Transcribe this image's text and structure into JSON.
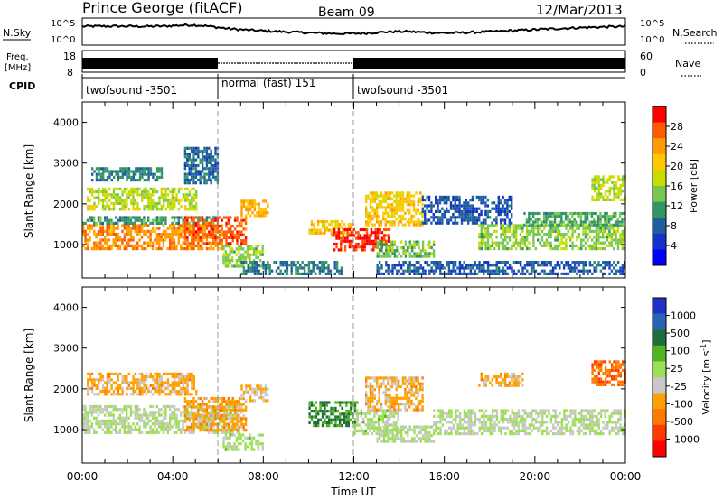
{
  "header": {
    "station": "Prince George (fitACF)",
    "beam": "Beam 09",
    "date": "12/Mar/2013"
  },
  "noise_panel": {
    "left_label": "N.Sky",
    "left_ticks": [
      "10^5",
      "10^0"
    ],
    "right_label": "N.Search",
    "right_ticks": [
      "10^5",
      "10^0"
    ]
  },
  "freq_panel": {
    "left_label_line1": "Freq.",
    "left_label_line2": "[MHz]",
    "left_ticks": [
      "18",
      "8"
    ],
    "right_label": "Nave",
    "right_ticks": [
      "60",
      "0"
    ]
  },
  "cpid_panel": {
    "label": "CPID",
    "segments": [
      {
        "label": "twofsound -3501",
        "start_hour": 0,
        "end_hour": 6
      },
      {
        "label": "normal (fast) 151",
        "start_hour": 6,
        "end_hour": 12
      },
      {
        "label": "twofsound -3501",
        "start_hour": 12,
        "end_hour": 24
      }
    ]
  },
  "power_colorbar": {
    "label": "Power [dB]",
    "ticks": [
      "28",
      "24",
      "20",
      "16",
      "12",
      "8",
      "4"
    ],
    "colors": [
      "#ff0000",
      "#ff5a00",
      "#ff9a00",
      "#ffc800",
      "#c8dc00",
      "#78c850",
      "#329664",
      "#1e5fa0",
      "#1432c8",
      "#0000ff"
    ]
  },
  "velocity_colorbar": {
    "label": "Velocity [m s",
    "label_sup": "-1",
    "label_end": "]",
    "ticks": [
      "1000",
      "500",
      "100",
      "25",
      "-25",
      "-100",
      "-500",
      "-1000"
    ],
    "colors": [
      "#1e32c8",
      "#2864b4",
      "#1e6e3c",
      "#50b41e",
      "#9be050",
      "#c8c8c8",
      "#ffa000",
      "#ff7800",
      "#ff3c00",
      "#ff0000"
    ]
  },
  "x_axis": {
    "label": "Time UT",
    "ticks": [
      "00:00",
      "04:00",
      "08:00",
      "12:00",
      "16:00",
      "20:00",
      "00:00"
    ]
  },
  "chart_data": [
    {
      "type": "heatmap",
      "title": "Power",
      "ylabel": "Slant Range [km]",
      "xlabel": "Time UT",
      "xlim": [
        0,
        24
      ],
      "ylim": [
        180,
        4500
      ],
      "y_ticks": [
        1000,
        2000,
        3000,
        4000
      ],
      "colorbar_label": "Power [dB]",
      "colorbar_range": [
        0,
        30
      ],
      "regions": [
        {
          "t0": 0,
          "t1": 6.2,
          "r0": 900,
          "r1": 1500,
          "value": 24
        },
        {
          "t0": 0,
          "t1": 6.0,
          "r0": 1500,
          "r1": 1700,
          "value": 10
        },
        {
          "t0": 0.2,
          "t1": 5.0,
          "r0": 1900,
          "r1": 2400,
          "value": 16
        },
        {
          "t0": 0.4,
          "t1": 3.5,
          "r0": 2600,
          "r1": 2900,
          "value": 9
        },
        {
          "t0": 4.5,
          "t1": 6.0,
          "r0": 2500,
          "r1": 3400,
          "value": 7
        },
        {
          "t0": 4.5,
          "t1": 7.2,
          "r0": 1000,
          "r1": 1700,
          "value": 27
        },
        {
          "t0": 6.2,
          "t1": 8.0,
          "r0": 500,
          "r1": 1000,
          "value": 14
        },
        {
          "t0": 7.0,
          "t1": 8.2,
          "r0": 1700,
          "r1": 2100,
          "value": 22
        },
        {
          "t0": 7.0,
          "t1": 11.5,
          "r0": 250,
          "r1": 600,
          "value": 8
        },
        {
          "t0": 10.0,
          "t1": 12.0,
          "r0": 1300,
          "r1": 1600,
          "value": 20
        },
        {
          "t0": 11.0,
          "t1": 13.5,
          "r0": 900,
          "r1": 1400,
          "value": 29
        },
        {
          "t0": 12.5,
          "t1": 15.0,
          "r0": 1500,
          "r1": 2300,
          "value": 20
        },
        {
          "t0": 13.0,
          "t1": 15.5,
          "r0": 700,
          "r1": 1100,
          "value": 13
        },
        {
          "t0": 15.0,
          "t1": 19.0,
          "r0": 1500,
          "r1": 2200,
          "value": 6
        },
        {
          "t0": 17.5,
          "t1": 24,
          "r0": 900,
          "r1": 1500,
          "value": 14
        },
        {
          "t0": 19.5,
          "t1": 24,
          "r0": 1500,
          "r1": 1800,
          "value": 11
        },
        {
          "t0": 22.5,
          "t1": 24,
          "r0": 2100,
          "r1": 2700,
          "value": 16
        },
        {
          "t0": 13.0,
          "t1": 24,
          "r0": 250,
          "r1": 600,
          "value": 6
        }
      ]
    },
    {
      "type": "heatmap",
      "title": "Velocity",
      "ylabel": "Slant Range [km]",
      "xlabel": "Time UT",
      "xlim": [
        0,
        24
      ],
      "ylim": [
        180,
        4500
      ],
      "y_ticks": [
        1000,
        2000,
        3000,
        4000
      ],
      "colorbar_label": "Velocity [m s-1]",
      "colorbar_range": [
        -1000,
        1000
      ],
      "regions": [
        {
          "t0": 0,
          "t1": 7.0,
          "r0": 900,
          "r1": 1600,
          "value": 0
        },
        {
          "t0": 0.2,
          "t1": 5.0,
          "r0": 1900,
          "r1": 2400,
          "value": -300
        },
        {
          "t0": 4.5,
          "t1": 7.2,
          "r0": 1000,
          "r1": 1800,
          "value": -350
        },
        {
          "t0": 6.2,
          "t1": 8.0,
          "r0": 500,
          "r1": 900,
          "value": 80
        },
        {
          "t0": 7.0,
          "t1": 8.2,
          "r0": 1700,
          "r1": 2100,
          "value": -200
        },
        {
          "t0": 10.0,
          "t1": 12.2,
          "r0": 1100,
          "r1": 1700,
          "value": 450
        },
        {
          "t0": 12.0,
          "t1": 14.0,
          "r0": 900,
          "r1": 1500,
          "value": 60
        },
        {
          "t0": 12.5,
          "t1": 15.0,
          "r0": 1500,
          "r1": 2300,
          "value": -300
        },
        {
          "t0": 13.0,
          "t1": 15.5,
          "r0": 700,
          "r1": 1100,
          "value": 0
        },
        {
          "t0": 15.5,
          "t1": 24,
          "r0": 900,
          "r1": 1500,
          "value": 0
        },
        {
          "t0": 17.5,
          "t1": 19.5,
          "r0": 2100,
          "r1": 2400,
          "value": -300
        },
        {
          "t0": 22.5,
          "t1": 24,
          "r0": 2100,
          "r1": 2700,
          "value": -600
        }
      ]
    }
  ]
}
